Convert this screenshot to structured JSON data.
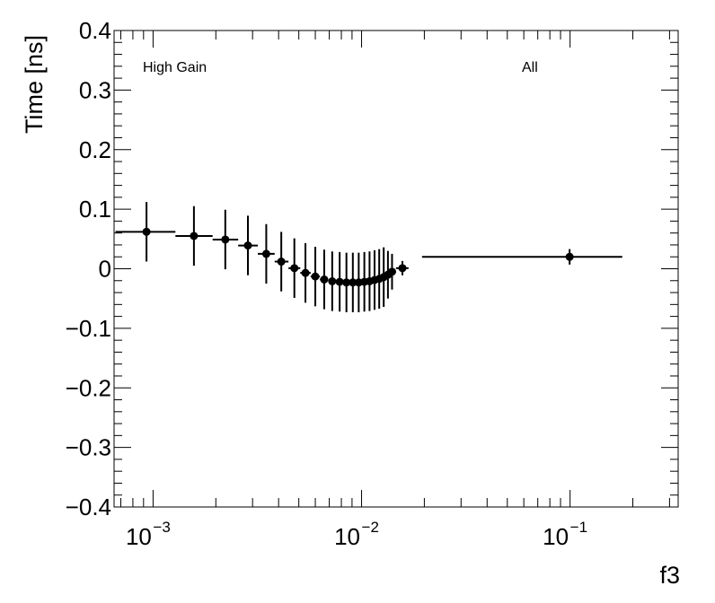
{
  "chart_data": {
    "type": "scatter",
    "xlabel": "f3",
    "ylabel": "Time [ns]",
    "x_scale": "log",
    "xlim": [
      0.00065,
      0.33
    ],
    "ylim": [
      -0.4,
      0.4
    ],
    "y_ticks": [
      "0.4",
      "0.3",
      "0.2",
      "0.1",
      "0",
      "−0.1",
      "−0.2",
      "−0.3",
      "−0.4"
    ],
    "x_ticks": [
      {
        "base": "10",
        "exp": "−3",
        "value": 0.001
      },
      {
        "base": "10",
        "exp": "−2",
        "value": 0.01
      },
      {
        "base": "10",
        "exp": "−1",
        "value": 0.1
      }
    ],
    "annotations": [
      {
        "id": "high-gain-annotation",
        "text": "High Gain"
      },
      {
        "id": "all-annotation",
        "text": "All"
      }
    ],
    "grid": false,
    "series": [
      {
        "marker": "circle",
        "color": "#000000",
        "points": [
          {
            "x": 0.00093,
            "xlo": 0.00066,
            "xhi": 0.00128,
            "y": 0.062,
            "yerr": 0.05
          },
          {
            "x": 0.00157,
            "xlo": 0.00128,
            "xhi": 0.00193,
            "y": 0.055,
            "yerr": 0.05
          },
          {
            "x": 0.00222,
            "xlo": 0.00193,
            "xhi": 0.00256,
            "y": 0.049,
            "yerr": 0.05
          },
          {
            "x": 0.00285,
            "xlo": 0.00256,
            "xhi": 0.00318,
            "y": 0.039,
            "yerr": 0.05
          },
          {
            "x": 0.00349,
            "xlo": 0.00318,
            "xhi": 0.00383,
            "y": 0.025,
            "yerr": 0.05
          },
          {
            "x": 0.00412,
            "xlo": 0.00383,
            "xhi": 0.00446,
            "y": 0.012,
            "yerr": 0.05
          },
          {
            "x": 0.00476,
            "xlo": 0.00446,
            "xhi": 0.00508,
            "y": 0.001,
            "yerr": 0.05
          },
          {
            "x": 0.00538,
            "xlo": 0.00508,
            "xhi": 0.0057,
            "y": -0.007,
            "yerr": 0.05
          },
          {
            "x": 0.006,
            "xlo": 0.0057,
            "xhi": 0.00631,
            "y": -0.013,
            "yerr": 0.05
          },
          {
            "x": 0.00662,
            "xlo": 0.00631,
            "xhi": 0.00692,
            "y": -0.018,
            "yerr": 0.05
          },
          {
            "x": 0.00723,
            "xlo": 0.00692,
            "xhi": 0.00754,
            "y": -0.021,
            "yerr": 0.05
          },
          {
            "x": 0.00785,
            "xlo": 0.00754,
            "xhi": 0.00815,
            "y": -0.022,
            "yerr": 0.05
          },
          {
            "x": 0.00846,
            "xlo": 0.00815,
            "xhi": 0.00877,
            "y": -0.023,
            "yerr": 0.05
          },
          {
            "x": 0.00908,
            "xlo": 0.00877,
            "xhi": 0.00938,
            "y": -0.023,
            "yerr": 0.05
          },
          {
            "x": 0.00969,
            "xlo": 0.00938,
            "xhi": 0.01,
            "y": -0.023,
            "yerr": 0.05
          },
          {
            "x": 0.01031,
            "xlo": 0.01,
            "xhi": 0.01062,
            "y": -0.022,
            "yerr": 0.05
          },
          {
            "x": 0.01092,
            "xlo": 0.01062,
            "xhi": 0.01123,
            "y": -0.021,
            "yerr": 0.05
          },
          {
            "x": 0.01154,
            "xlo": 0.01123,
            "xhi": 0.01185,
            "y": -0.019,
            "yerr": 0.05
          },
          {
            "x": 0.01215,
            "xlo": 0.01185,
            "xhi": 0.01246,
            "y": -0.017,
            "yerr": 0.05
          },
          {
            "x": 0.01277,
            "xlo": 0.01246,
            "xhi": 0.01308,
            "y": -0.014,
            "yerr": 0.05
          },
          {
            "x": 0.01338,
            "xlo": 0.01308,
            "xhi": 0.01369,
            "y": -0.01,
            "yerr": 0.04
          },
          {
            "x": 0.014,
            "xlo": 0.01369,
            "xhi": 0.01462,
            "y": -0.005,
            "yerr": 0.03
          },
          {
            "x": 0.0157,
            "xlo": 0.01462,
            "xhi": 0.0168,
            "y": 0.001,
            "yerr": 0.012
          },
          {
            "x": 0.0995,
            "xlo": 0.0195,
            "xhi": 0.178,
            "y": 0.02,
            "yerr": 0.013
          }
        ]
      }
    ]
  }
}
